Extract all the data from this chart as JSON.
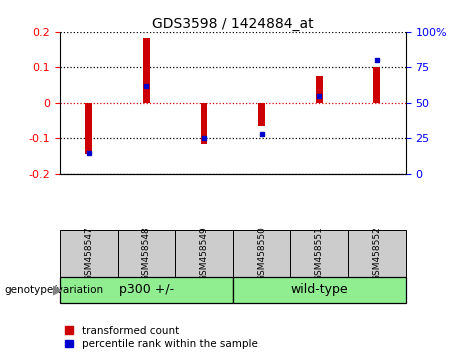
{
  "title": "GDS3598 / 1424884_at",
  "samples": [
    "GSM458547",
    "GSM458548",
    "GSM458549",
    "GSM458550",
    "GSM458551",
    "GSM458552"
  ],
  "red_bars": [
    -0.145,
    0.182,
    -0.115,
    -0.065,
    0.075,
    0.102
  ],
  "blue_dots_pct": [
    15,
    62,
    25,
    28,
    55,
    80
  ],
  "ylim_left": [
    -0.2,
    0.2
  ],
  "ylim_right": [
    0,
    100
  ],
  "yticks_left": [
    -0.2,
    -0.1,
    0,
    0.1,
    0.2
  ],
  "yticks_right": [
    0,
    25,
    50,
    75,
    100
  ],
  "ytick_labels_right": [
    "0",
    "25",
    "50",
    "75",
    "100%"
  ],
  "groups": [
    {
      "label": "p300 +/-",
      "indices": [
        0,
        1,
        2
      ],
      "color": "#90EE90"
    },
    {
      "label": "wild-type",
      "indices": [
        3,
        4,
        5
      ],
      "color": "#90EE90"
    }
  ],
  "group_label_prefix": "genotype/variation",
  "bar_color": "#CC0000",
  "dot_color": "#0000CC",
  "bar_width": 0.12,
  "legend_red_label": "transformed count",
  "legend_blue_label": "percentile rank within the sample",
  "background_color": "#ffffff",
  "plot_bg_color": "#ffffff",
  "sample_box_color": "#cccccc",
  "hline_red_color": "#CC0000",
  "hline_black_color": "#000000"
}
